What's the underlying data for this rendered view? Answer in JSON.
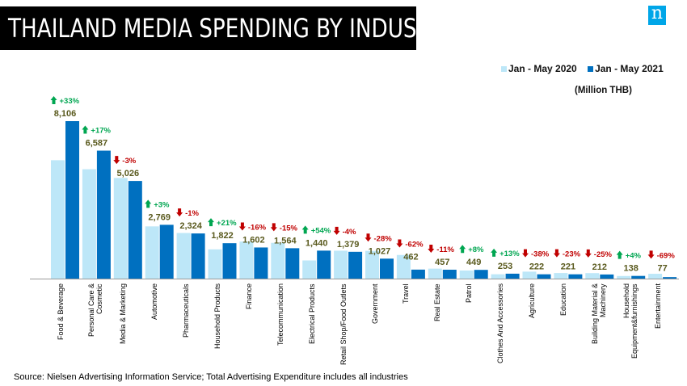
{
  "title": "THAILAND  MEDIA SPENDING BY INDUSTRY",
  "logo_text": "n",
  "unit": "(Million THB)",
  "source": "Source: Nielsen Advertising Information Service; Total Advertising Expenditure includes all industries",
  "colors": {
    "y2020": "#bde7f8",
    "y2021": "#0070c0",
    "up": "#00a651",
    "down": "#c00000",
    "value": "#5a5a1e"
  },
  "chart_data": {
    "type": "bar",
    "title": "THAILAND  MEDIA SPENDING BY INDUSTRY",
    "ylabel": "Million THB",
    "ylim": [
      0,
      8106
    ],
    "grid": false,
    "legend_position": "top-right",
    "categories": [
      "Food & Beverage",
      "Personal Care & Cosmetic",
      "Media & Marketing",
      "Automotive",
      "Pharmaceuticals",
      "Household Products",
      "Finance",
      "Telecommunication",
      "Electrical Products",
      "Retail Shop/Food Outlets",
      "Government",
      "Travel",
      "Real Estate",
      "Patrol",
      "Clothes And Accessories",
      "Agriculture",
      "Education",
      "Building Material & Machinery",
      "Household Equipment&furnishings",
      "Entertainment"
    ],
    "series": [
      {
        "name": "Jan - May 2020",
        "values": [
          6095,
          5630,
          5181,
          2688,
          2347,
          1506,
          1907,
          1840,
          935,
          1436,
          1426,
          1216,
          513,
          416,
          224,
          358,
          287,
          283,
          133,
          248
        ]
      },
      {
        "name": "Jan - May 2021",
        "values": [
          8106,
          6587,
          5026,
          2769,
          2324,
          1822,
          1602,
          1564,
          1440,
          1379,
          1027,
          462,
          457,
          449,
          253,
          222,
          221,
          212,
          138,
          77
        ]
      }
    ],
    "value_labels": [
      "8,106",
      "6,587",
      "5,026",
      "2,769",
      "2,324",
      "1,822",
      "1,602",
      "1,564",
      "1,440",
      "1,379",
      "1,027",
      "462",
      "457",
      "449",
      "253",
      "222",
      "221",
      "212",
      "138",
      "77"
    ],
    "change_labels": [
      "+33%",
      "+17%",
      "-3%",
      "+3%",
      "-1%",
      "+21%",
      "-16%",
      "-15%",
      "+54%",
      "-4%",
      "-28%",
      "-62%",
      "-11%",
      "+8%",
      "+13%",
      "-38%",
      "-23%",
      "-25%",
      "+4%",
      "-69%"
    ]
  }
}
